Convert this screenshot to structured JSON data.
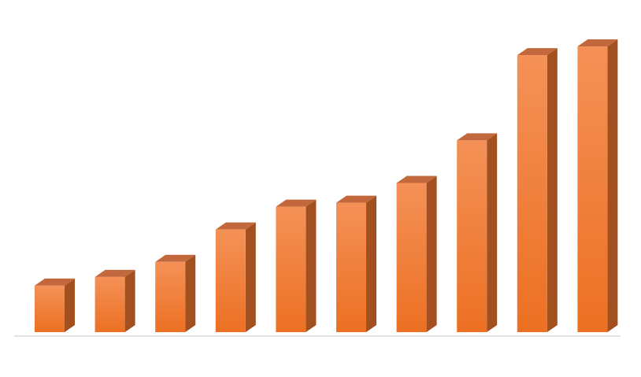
{
  "chart_data": {
    "type": "bar",
    "style": "3d-column",
    "categories": [
      "",
      "",
      "",
      "",
      "",
      "",
      "",
      "",
      "",
      ""
    ],
    "values": [
      59,
      70,
      89,
      130,
      159,
      164,
      189,
      243,
      351,
      362
    ],
    "ylim": [
      0,
      380
    ],
    "grid": false,
    "legend": "none",
    "colors": {
      "front_top": "#F49157",
      "front_bottom": "#EC7023",
      "top_face": "#C3683C",
      "side_face": "#A2501F",
      "axis": "#D9D9D9"
    }
  }
}
